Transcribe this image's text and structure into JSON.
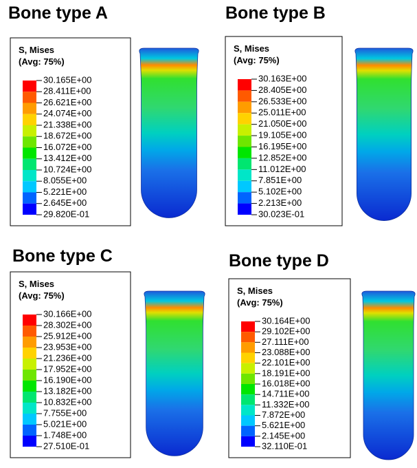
{
  "panels": [
    {
      "title": "Bone type A",
      "legend_title": [
        "S, Mises",
        "(Avg: 75%)"
      ],
      "labels": [
        "30.165E+00",
        "28.411E+00",
        "26.621E+00",
        "24.074E+00",
        "21.338E+00",
        "18.672E+00",
        "16.072E+00",
        "13.412E+00",
        "10.724E+00",
        "8.055E+00",
        "5.221E+00",
        "2.645E+00",
        "29.820E-01"
      ]
    },
    {
      "title": "Bone type B",
      "legend_title": [
        "S, Mises",
        "(Avg: 75%)"
      ],
      "labels": [
        "30.163E+00",
        "28.405E+00",
        "26.533E+00",
        "25.011E+00",
        "21.050E+00",
        "19.105E+00",
        "16.195E+00",
        "12.852E+00",
        "11.012E+00",
        "7.851E+00",
        "5.102E+00",
        "2.213E+00",
        "30.023E-01"
      ]
    },
    {
      "title": "Bone type C",
      "legend_title": [
        "S, Mises",
        "(Avg: 75%)"
      ],
      "labels": [
        "30.166E+00",
        "28.302E+00",
        "25.912E+00",
        "23.953E+00",
        "21.236E+00",
        "17.952E+00",
        "16.190E+00",
        "13.182E+00",
        "10.832E+00",
        "7.755E+00",
        "5.021E+00",
        "1.748E+00",
        "27.510E-01"
      ]
    },
    {
      "title": "Bone type D",
      "legend_title": [
        "S, Mises",
        "(Avg: 75%)"
      ],
      "labels": [
        "30.164E+00",
        "29.102E+00",
        "27.111E+00",
        "23.088E+00",
        "22.101E+00",
        "18.191E+00",
        "16.018E+00",
        "14.711E+00",
        "11.332E+00",
        "7.872E+00",
        "5.621E+00",
        "2.145E+00",
        "32.110E-01"
      ]
    }
  ]
}
